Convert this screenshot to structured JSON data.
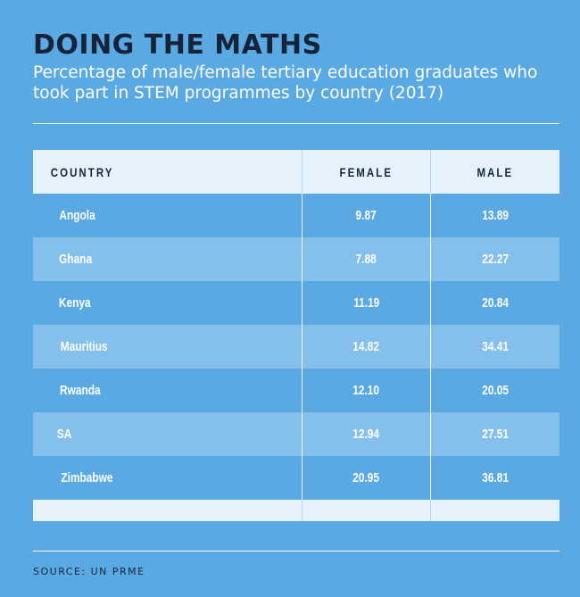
{
  "chart_data": {
    "type": "table",
    "title": "DOING THE MATHS",
    "subtitle": "Percentage of male/female tertiary education graduates who took part in STEM programmes by country (2017)",
    "columns": [
      "COUNTRY",
      "FEMALE",
      "MALE"
    ],
    "rows": [
      {
        "country": "Angola",
        "female": "9.87",
        "male": "13.89"
      },
      {
        "country": "Ghana",
        "female": "7.88",
        "male": "22.27"
      },
      {
        "country": "Kenya",
        "female": "11.19",
        "male": "20.84"
      },
      {
        "country": "Mauritius",
        "female": "14.82",
        "male": "34.41"
      },
      {
        "country": "Rwanda",
        "female": "12.10",
        "male": "20.05"
      },
      {
        "country": "SA",
        "female": "12.94",
        "male": "27.51"
      },
      {
        "country": "Zimbabwe",
        "female": "20.95",
        "male": "36.81"
      }
    ],
    "source": "SOURCE: UN PRME"
  },
  "colors": {
    "background": "#5aa9e3",
    "band": "#85c0ec",
    "header": "#e6f2fb",
    "title": "#16243b",
    "text": "#ffffff"
  }
}
